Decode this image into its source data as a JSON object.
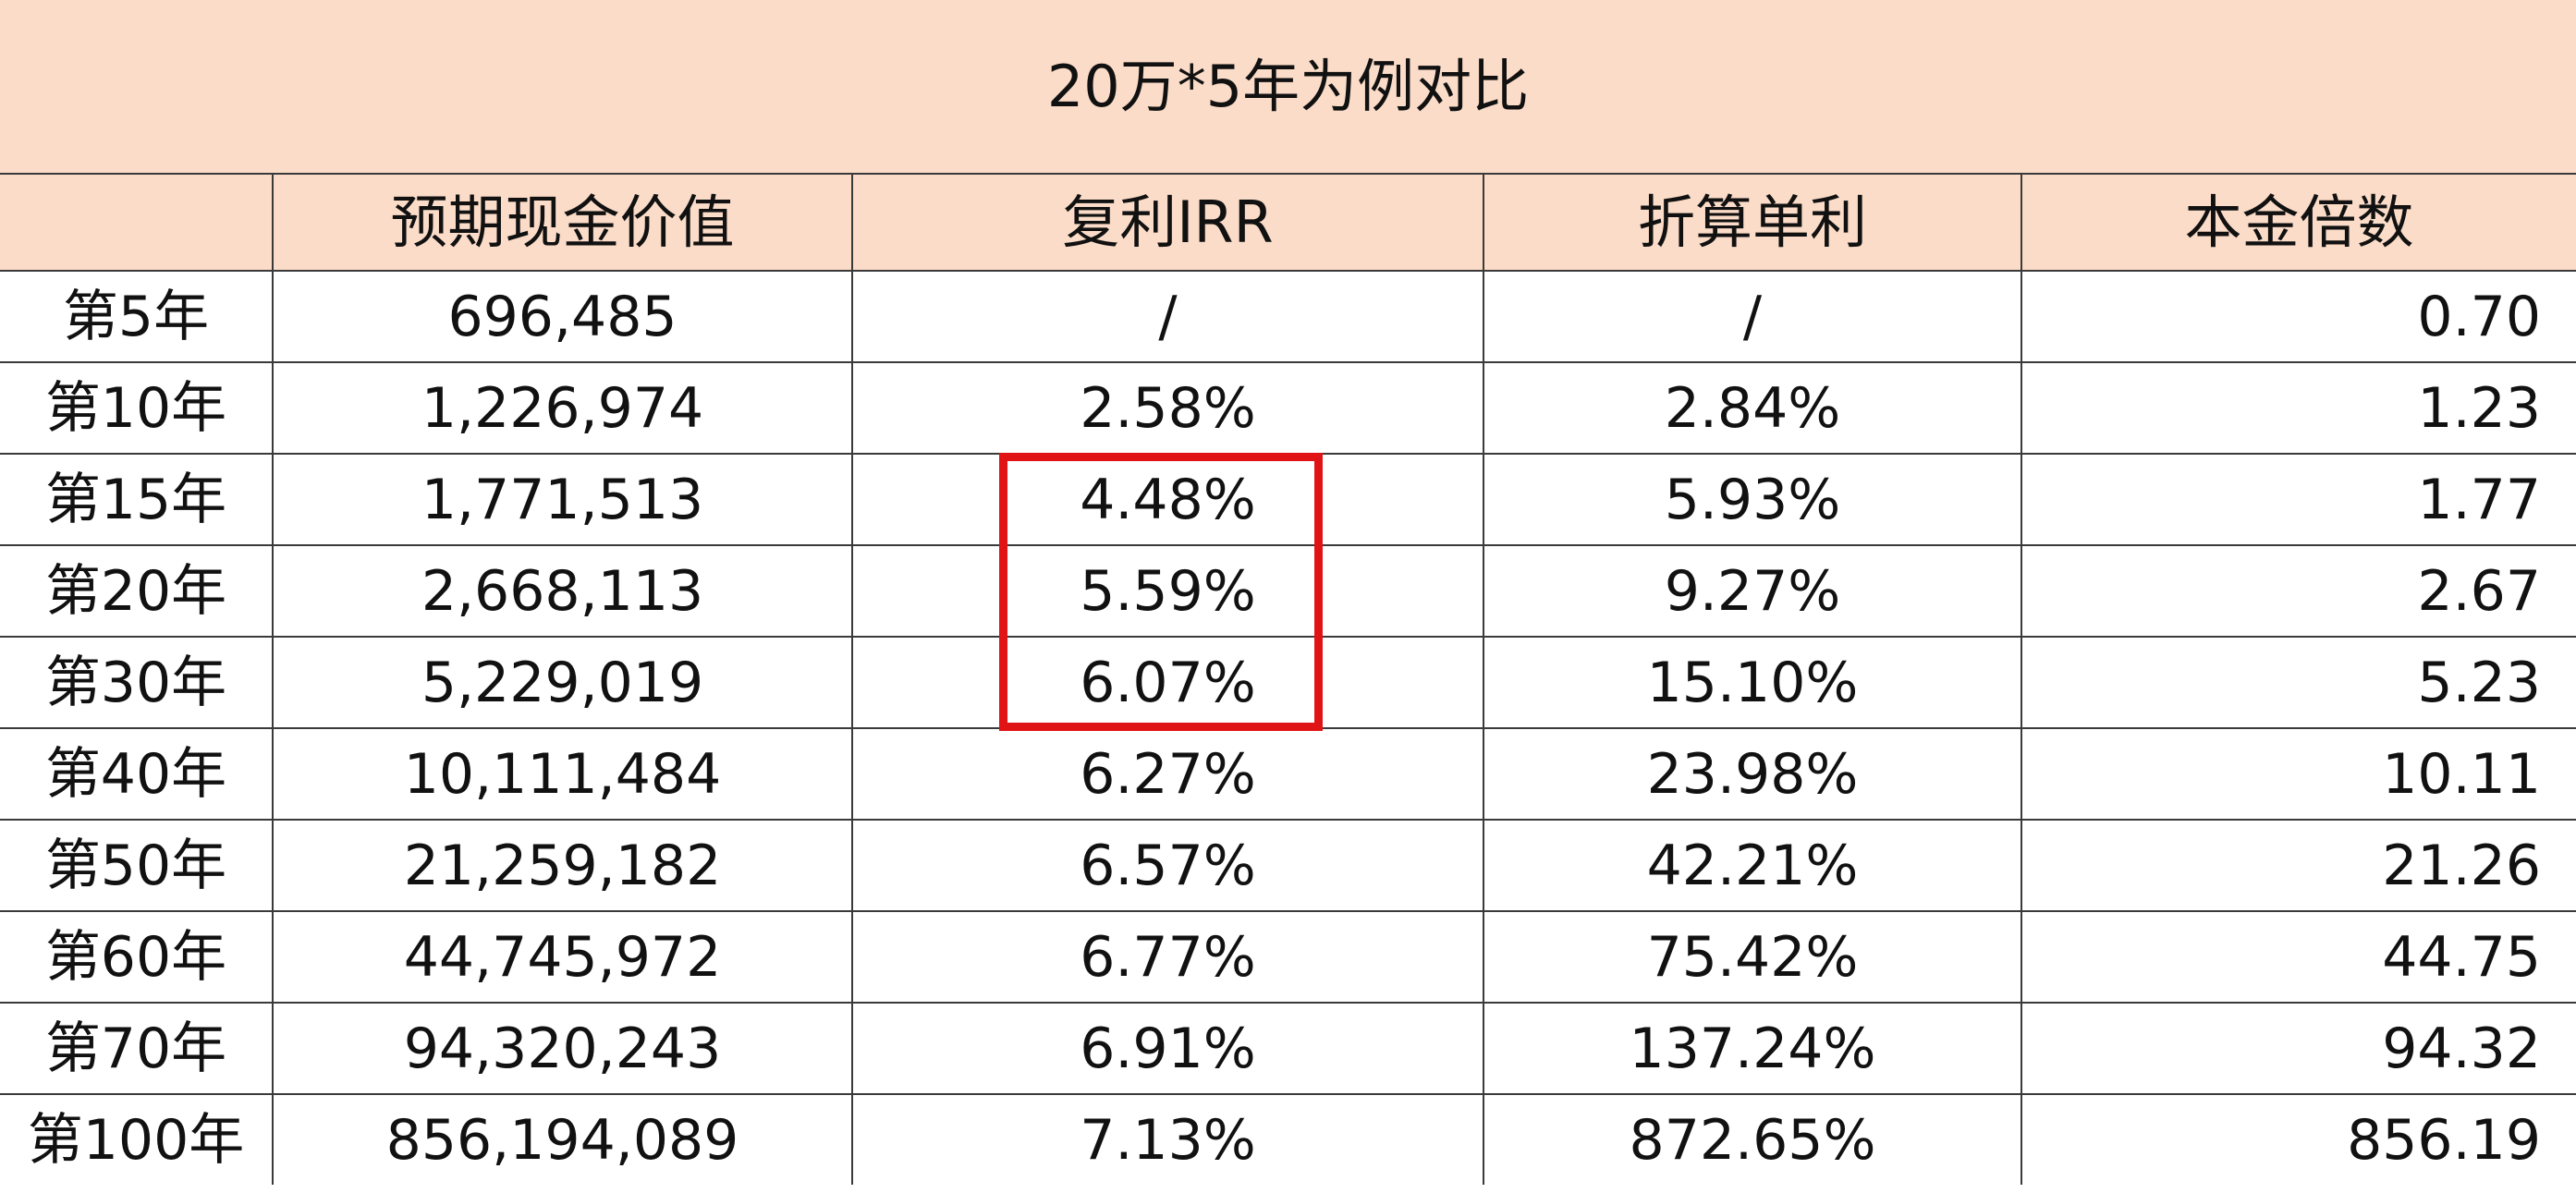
{
  "table": {
    "title": "20万*5年为例对比",
    "headers": [
      "",
      "预期现金价值",
      "复利IRR",
      "折算单利",
      "本金倍数"
    ],
    "rows": [
      {
        "year": "第5年",
        "cash_value": "696,485",
        "irr": "/",
        "simple_rate": "/",
        "multiple": "0.70"
      },
      {
        "year": "第10年",
        "cash_value": "1,226,974",
        "irr": "2.58%",
        "simple_rate": "2.84%",
        "multiple": "1.23"
      },
      {
        "year": "第15年",
        "cash_value": "1,771,513",
        "irr": "4.48%",
        "simple_rate": "5.93%",
        "multiple": "1.77"
      },
      {
        "year": "第20年",
        "cash_value": "2,668,113",
        "irr": "5.59%",
        "simple_rate": "9.27%",
        "multiple": "2.67"
      },
      {
        "year": "第30年",
        "cash_value": "5,229,019",
        "irr": "6.07%",
        "simple_rate": "15.10%",
        "multiple": "5.23"
      },
      {
        "year": "第40年",
        "cash_value": "10,111,484",
        "irr": "6.27%",
        "simple_rate": "23.98%",
        "multiple": "10.11"
      },
      {
        "year": "第50年",
        "cash_value": "21,259,182",
        "irr": "6.57%",
        "simple_rate": "42.21%",
        "multiple": "21.26"
      },
      {
        "year": "第60年",
        "cash_value": "44,745,972",
        "irr": "6.77%",
        "simple_rate": "75.42%",
        "multiple": "44.75"
      },
      {
        "year": "第70年",
        "cash_value": "94,320,243",
        "irr": "6.91%",
        "simple_rate": "137.24%",
        "multiple": "94.32"
      },
      {
        "year": "第100年",
        "cash_value": "856,194,089",
        "irr": "7.13%",
        "simple_rate": "872.65%",
        "multiple": "856.19"
      }
    ]
  },
  "highlight": {
    "color": "#e01414",
    "target_rows": [
      "第15年",
      "第20年",
      "第30年"
    ],
    "target_column": "复利IRR"
  },
  "colors": {
    "header_background": "#fbdcc8",
    "grid_line": "#3a3a3a"
  }
}
